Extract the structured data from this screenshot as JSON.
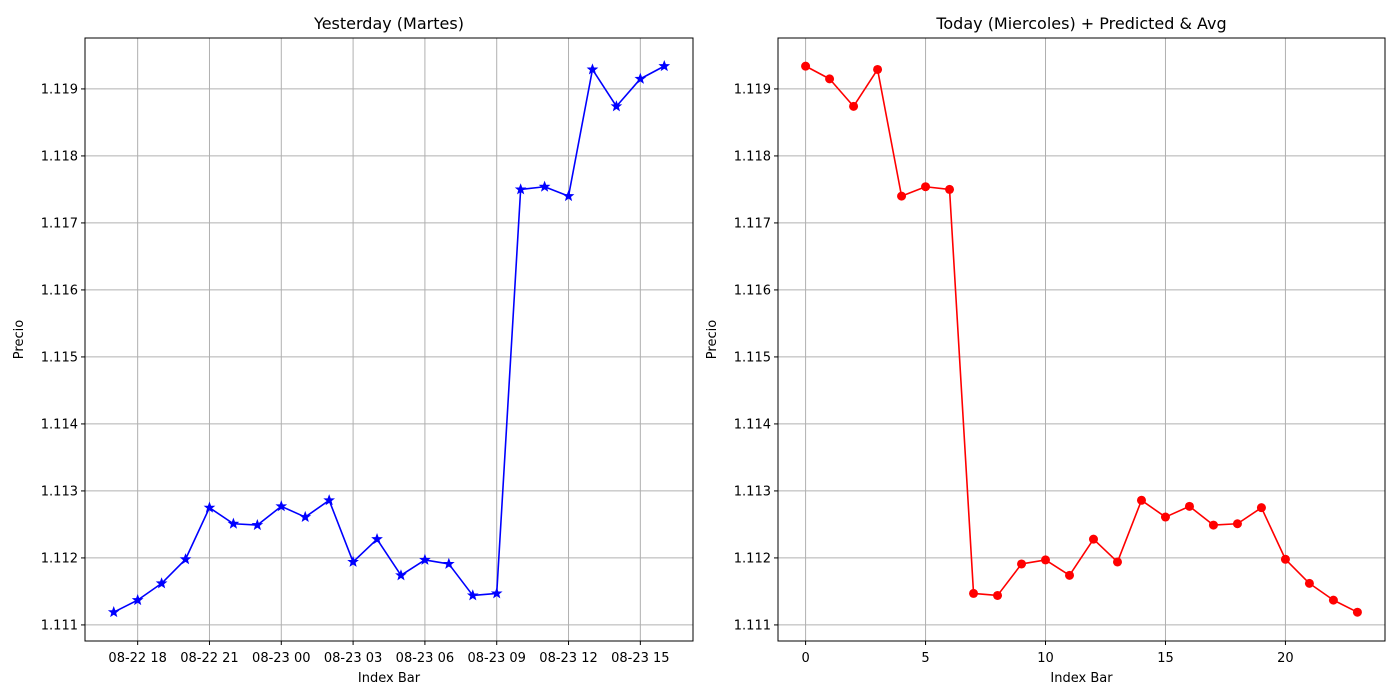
{
  "chart_data": [
    {
      "type": "line",
      "title": "Yesterday (Martes)",
      "xlabel": "Index Bar",
      "ylabel": "Precio",
      "x_axis": "datetime",
      "x_tick_labels": [
        "08-22 18",
        "08-22 21",
        "08-23 00",
        "08-23 03",
        "08-23 06",
        "08-23 09",
        "08-23 12",
        "08-23 15"
      ],
      "x_tick_values": [
        "2019-08-22 18:00",
        "2019-08-22 21:00",
        "2019-08-23 00:00",
        "2019-08-23 03:00",
        "2019-08-23 06:00",
        "2019-08-23 09:00",
        "2019-08-23 12:00",
        "2019-08-23 15:00"
      ],
      "xlim": [
        "2019-08-22 15:48",
        "2019-08-23 17:12"
      ],
      "ylim": [
        1.11076,
        1.11976
      ],
      "y_ticks": [
        "1.111",
        "1.112",
        "1.113",
        "1.114",
        "1.115",
        "1.116",
        "1.117",
        "1.118",
        "1.119"
      ],
      "grid": true,
      "color": "#0000ff",
      "marker": "star",
      "series": [
        {
          "x": [
            "2019-08-22 17:00",
            "2019-08-22 18:00",
            "2019-08-22 19:00",
            "2019-08-22 20:00",
            "2019-08-22 21:00",
            "2019-08-22 22:00",
            "2019-08-22 23:00",
            "2019-08-23 00:00",
            "2019-08-23 01:00",
            "2019-08-23 02:00",
            "2019-08-23 03:00",
            "2019-08-23 04:00",
            "2019-08-23 05:00",
            "2019-08-23 06:00",
            "2019-08-23 07:00",
            "2019-08-23 08:00",
            "2019-08-23 09:00",
            "2019-08-23 10:00",
            "2019-08-23 11:00",
            "2019-08-23 12:00",
            "2019-08-23 13:00",
            "2019-08-23 14:00",
            "2019-08-23 15:00",
            "2019-08-23 16:00"
          ],
          "y": [
            1.11119,
            1.11137,
            1.11162,
            1.11198,
            1.11275,
            1.11251,
            1.11249,
            1.11277,
            1.11261,
            1.11286,
            1.11194,
            1.11228,
            1.11174,
            1.11197,
            1.11191,
            1.11144,
            1.11147,
            1.1175,
            1.11754,
            1.1174,
            1.11929,
            1.11874,
            1.11915,
            1.11934
          ]
        }
      ]
    },
    {
      "type": "line",
      "title": "Today (Miercoles)  + Predicted & Avg",
      "xlabel": "Index Bar",
      "ylabel": "Precio",
      "x_tick_labels": [
        "0",
        "5",
        "10",
        "15",
        "20"
      ],
      "x_tick_values": [
        0,
        5,
        10,
        15,
        20
      ],
      "xlim": [
        -1.15,
        24.15
      ],
      "ylim": [
        1.11076,
        1.11976
      ],
      "y_ticks": [
        "1.111",
        "1.112",
        "1.113",
        "1.114",
        "1.115",
        "1.116",
        "1.117",
        "1.118",
        "1.119"
      ],
      "grid": true,
      "color": "#ff0000",
      "marker": "circle",
      "series": [
        {
          "x": [
            0,
            1,
            2,
            3,
            4,
            5,
            6,
            7,
            8,
            9,
            10,
            11,
            12,
            13,
            14,
            15,
            16,
            17,
            18,
            19,
            20,
            21,
            22,
            23
          ],
          "y": [
            1.11934,
            1.11915,
            1.11874,
            1.11929,
            1.1174,
            1.11754,
            1.1175,
            1.11147,
            1.11144,
            1.11191,
            1.11197,
            1.11174,
            1.11228,
            1.11194,
            1.11286,
            1.11261,
            1.11277,
            1.11249,
            1.11251,
            1.11275,
            1.11198,
            1.11162,
            1.11137,
            1.11119
          ]
        }
      ]
    }
  ]
}
